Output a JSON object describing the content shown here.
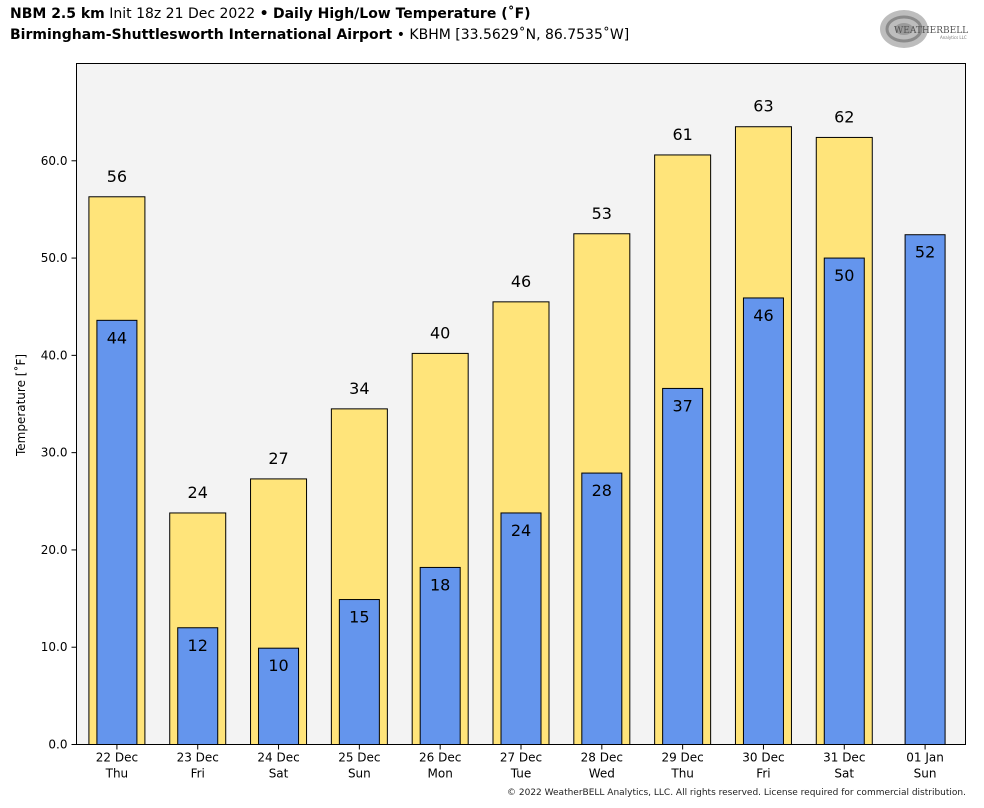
{
  "header": {
    "model": "NBM 2.5 km",
    "init": "Init 18z 21 Dec 2022",
    "bullet": "•",
    "product": "Daily High/Low Temperature (˚F)",
    "station_name": "Birmingham-Shuttlesworth International Airport",
    "station_info": "KBHM [33.5629˚N, 86.7535˚W]"
  },
  "logo": {
    "text": "WEATHERBELL",
    "sub": "Analytics LLC"
  },
  "copyright": "© 2022 WeatherBELL Analytics, LLC. All rights reserved. License required for commercial distribution.",
  "chart_data": {
    "type": "bar",
    "title": "Daily High/Low Temperature (˚F)",
    "ylabel": "Temperature [˚F]",
    "xlabel": "",
    "ylim": [
      0,
      70
    ],
    "yticks": [
      0,
      10,
      20,
      30,
      40,
      50,
      60
    ],
    "ytick_labels": [
      "0.0",
      "10.0",
      "20.0",
      "30.0",
      "40.0",
      "50.0",
      "60.0"
    ],
    "grid": false,
    "categories": [
      {
        "date": "22 Dec",
        "day": "Thu"
      },
      {
        "date": "23 Dec",
        "day": "Fri"
      },
      {
        "date": "24 Dec",
        "day": "Sat"
      },
      {
        "date": "25 Dec",
        "day": "Sun"
      },
      {
        "date": "26 Dec",
        "day": "Mon"
      },
      {
        "date": "27 Dec",
        "day": "Tue"
      },
      {
        "date": "28 Dec",
        "day": "Wed"
      },
      {
        "date": "29 Dec",
        "day": "Thu"
      },
      {
        "date": "30 Dec",
        "day": "Fri"
      },
      {
        "date": "31 Dec",
        "day": "Sat"
      },
      {
        "date": "01 Jan",
        "day": "Sun"
      }
    ],
    "series": [
      {
        "values": [
          56.3,
          23.8,
          27.3,
          34.5,
          40.2,
          45.5,
          52.5,
          60.6,
          63.5,
          62.4,
          null
        ],
        "labels": [
          "56",
          "24",
          "27",
          "34",
          "40",
          "46",
          "53",
          "61",
          "63",
          "62",
          ""
        ],
        "color": "#ffe47a"
      },
      {
        "values": [
          43.6,
          12.0,
          9.9,
          14.9,
          18.2,
          23.8,
          27.9,
          36.6,
          45.9,
          50.0,
          52.4
        ],
        "labels": [
          "44",
          "12",
          "10",
          "15",
          "18",
          "24",
          "28",
          "37",
          "46",
          "50",
          "52"
        ],
        "color": "#6495ed"
      }
    ],
    "background": "#f3f3f3"
  }
}
